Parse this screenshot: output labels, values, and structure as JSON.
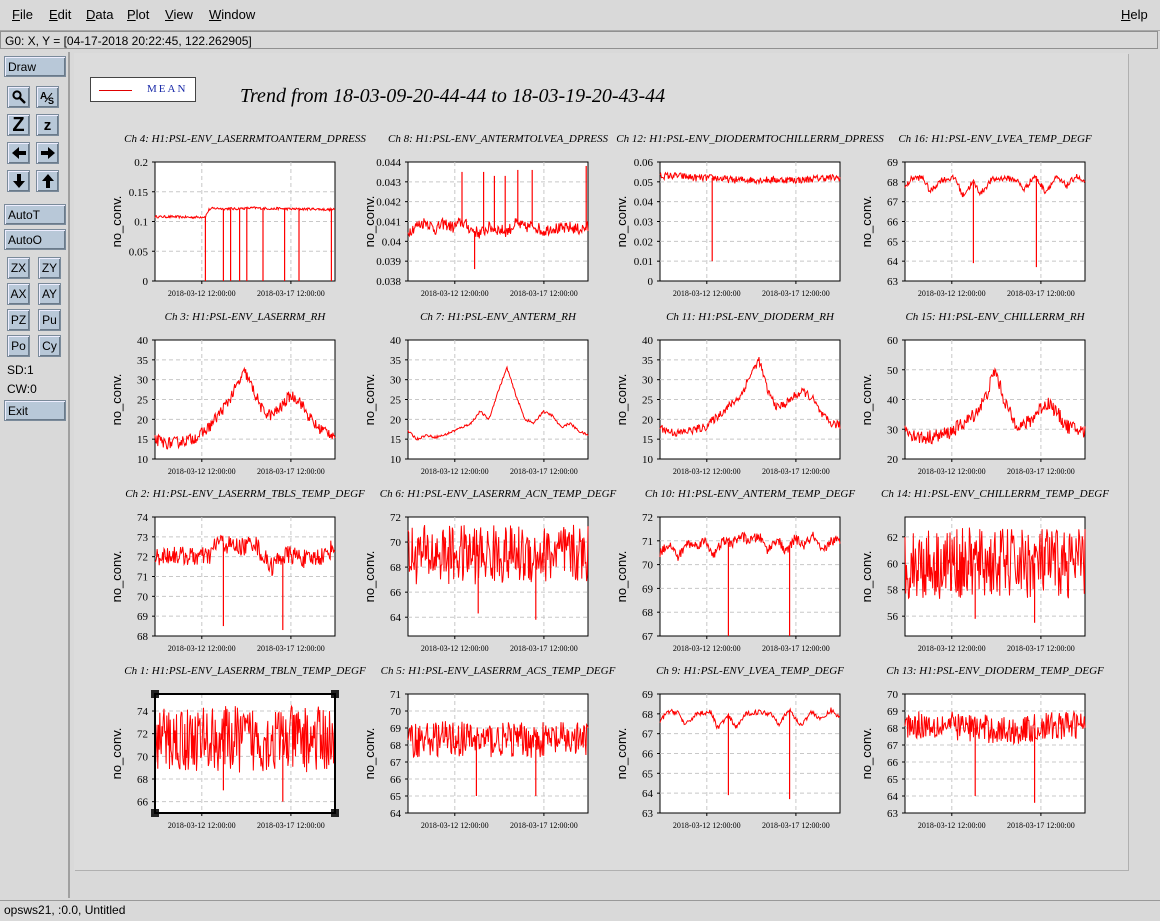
{
  "menubar": {
    "file": "File",
    "edit": "Edit",
    "data": "Data",
    "plot": "Plot",
    "view": "View",
    "window": "Window",
    "help": "Help"
  },
  "coord_readout": "G0: X, Y = [04-17-2018 20:22:45, 122.262905]",
  "toolbar": {
    "draw": "Draw",
    "zoom_big": "Z",
    "zoom_small": "z",
    "auto_t": "AutoT",
    "auto_o": "AutoO",
    "zx": "ZX",
    "zy": "ZY",
    "ax": "AX",
    "ay": "AY",
    "pz": "PZ",
    "pu": "Pu",
    "po": "Po",
    "cy": "Cy",
    "sd": "SD:1",
    "cw": "CW:0",
    "exit": "Exit"
  },
  "legend": {
    "label": "MEAN"
  },
  "main_title": "Trend from 18-03-09-20-44-44 to 18-03-19-20-43-44",
  "status": "opsws21, :0.0, Untitled",
  "colors": {
    "trace": "#ff0000",
    "legend_text": "#1a2aa8"
  },
  "chart_data": [
    {
      "type": "line",
      "title": "Ch 4: H1:PSL-ENV_LASERRMTOANTERM_DPRESS",
      "ylabel": "no_conv.",
      "xticks": [
        "2018-03-12 12:00:00",
        "2018-03-17 12:00:00"
      ],
      "yticks": [
        "0",
        "0.05",
        "0.1",
        "0.15",
        "0.2"
      ],
      "ylim": [
        0,
        0.2
      ],
      "series": [
        {
          "x": [
            0,
            0.1,
            0.2,
            0.28,
            0.3,
            0.32,
            0.36,
            0.38,
            0.42,
            0.44,
            0.48,
            0.5,
            0.55,
            0.6,
            0.62,
            0.66,
            0.68,
            0.75,
            0.8,
            0.85,
            0.9,
            0.95,
            1
          ],
          "y": [
            0.108,
            0.108,
            0.107,
            0.108,
            0.12,
            0.122,
            0.122,
            0.121,
            0.122,
            0.121,
            0.122,
            0.122,
            0.123,
            0.122,
            0.122,
            0.121,
            0.122,
            0.121,
            0.121,
            0.121,
            0.121,
            0.12,
            0.12
          ]
        }
      ],
      "spikes": [
        {
          "x": 0.28,
          "y": 0
        },
        {
          "x": 0.38,
          "y": 0
        },
        {
          "x": 0.42,
          "y": 0
        },
        {
          "x": 0.47,
          "y": 0
        },
        {
          "x": 0.51,
          "y": 0
        },
        {
          "x": 0.6,
          "y": 0
        },
        {
          "x": 0.72,
          "y": 0
        },
        {
          "x": 0.8,
          "y": 0
        },
        {
          "x": 0.98,
          "y": 0
        }
      ]
    },
    {
      "type": "line",
      "title": "Ch 8: H1:PSL-ENV_ANTERMTOLVEA_DPRESS",
      "ylabel": "no_conv.",
      "xticks": [
        "2018-03-12 12:00:00",
        "2018-03-17 12:00:00"
      ],
      "yticks": [
        "0.038",
        "0.039",
        "0.04",
        "0.041",
        "0.042",
        "0.043",
        "0.044"
      ],
      "ylim": [
        0.038,
        0.044
      ],
      "series": [
        {
          "x": [
            0,
            0.05,
            0.1,
            0.15,
            0.2,
            0.25,
            0.3,
            0.35,
            0.4,
            0.45,
            0.5,
            0.55,
            0.6,
            0.65,
            0.7,
            0.75,
            0.8,
            0.85,
            0.9,
            0.95,
            1
          ],
          "y": [
            0.0405,
            0.0408,
            0.041,
            0.0406,
            0.0409,
            0.0407,
            0.041,
            0.0406,
            0.0404,
            0.0407,
            0.0406,
            0.0405,
            0.0409,
            0.0407,
            0.0408,
            0.0405,
            0.0407,
            0.0406,
            0.0407,
            0.0406,
            0.0407
          ]
        }
      ],
      "spikes": [
        {
          "x": 0.3,
          "y": 0.0435
        },
        {
          "x": 0.37,
          "y": 0.0386
        },
        {
          "x": 0.42,
          "y": 0.0435
        },
        {
          "x": 0.48,
          "y": 0.0433
        },
        {
          "x": 0.54,
          "y": 0.0433
        },
        {
          "x": 0.61,
          "y": 0.0436
        },
        {
          "x": 0.69,
          "y": 0.0436
        },
        {
          "x": 0.99,
          "y": 0.0438
        }
      ]
    },
    {
      "type": "line",
      "title": "Ch 12: H1:PSL-ENV_DIODERMTOCHILLERRM_DPRESS",
      "ylabel": "no_conv.",
      "xticks": [
        "2018-03-12 12:00:00",
        "2018-03-17 12:00:00"
      ],
      "yticks": [
        "0",
        "0.01",
        "0.02",
        "0.03",
        "0.04",
        "0.05",
        "0.06"
      ],
      "ylim": [
        0,
        0.06
      ],
      "series": [
        {
          "x": [
            0,
            0.1,
            0.2,
            0.3,
            0.4,
            0.5,
            0.6,
            0.7,
            0.8,
            0.9,
            1
          ],
          "y": [
            0.053,
            0.053,
            0.052,
            0.052,
            0.051,
            0.051,
            0.051,
            0.051,
            0.051,
            0.052,
            0.052
          ]
        }
      ],
      "spikes": [
        {
          "x": 0.29,
          "y": 0.01
        }
      ]
    },
    {
      "type": "line",
      "title": "Ch 16: H1:PSL-ENV_LVEA_TEMP_DEGF",
      "ylabel": "no_conv.",
      "xticks": [
        "2018-03-12 12:00:00",
        "2018-03-17 12:00:00"
      ],
      "yticks": [
        "63",
        "64",
        "65",
        "66",
        "67",
        "68",
        "69"
      ],
      "ylim": [
        63,
        69
      ],
      "series": [
        {
          "x": [
            0,
            0.04,
            0.1,
            0.14,
            0.2,
            0.28,
            0.32,
            0.38,
            0.42,
            0.48,
            0.55,
            0.62,
            0.66,
            0.72,
            0.78,
            0.84,
            0.9,
            0.95,
            1
          ],
          "y": [
            67.7,
            68.2,
            68.2,
            67.5,
            68.1,
            68.2,
            67.3,
            68,
            67.4,
            68.1,
            68.2,
            68.1,
            67.6,
            68.3,
            67.5,
            68.2,
            67.8,
            68.3,
            67.9
          ]
        }
      ],
      "spikes": [
        {
          "x": 0.38,
          "y": 63.9
        },
        {
          "x": 0.73,
          "y": 63.7
        }
      ]
    },
    {
      "type": "line",
      "title": "Ch 3: H1:PSL-ENV_LASERRM_RH",
      "ylabel": "no_conv.",
      "xticks": [
        "2018-03-12 12:00:00",
        "2018-03-17 12:00:00"
      ],
      "yticks": [
        "10",
        "15",
        "20",
        "25",
        "30",
        "35",
        "40"
      ],
      "ylim": [
        10,
        40
      ],
      "series": [
        {
          "x": [
            0,
            0.05,
            0.1,
            0.15,
            0.2,
            0.25,
            0.3,
            0.35,
            0.4,
            0.45,
            0.5,
            0.55,
            0.6,
            0.65,
            0.7,
            0.75,
            0.8,
            0.85,
            0.9,
            0.95,
            1
          ],
          "y": [
            15,
            14,
            14,
            14.5,
            15,
            16,
            18,
            21,
            24,
            28,
            32,
            27,
            22,
            21,
            23,
            26,
            25,
            21,
            18,
            17,
            16
          ]
        }
      ]
    },
    {
      "type": "line",
      "title": "Ch 7: H1:PSL-ENV_ANTERM_RH",
      "ylabel": "no_conv.",
      "xticks": [
        "2018-03-12 12:00:00",
        "2018-03-17 12:00:00"
      ],
      "yticks": [
        "10",
        "15",
        "20",
        "25",
        "30",
        "35",
        "40"
      ],
      "ylim": [
        10,
        40
      ],
      "series": [
        {
          "x": [
            0,
            0.05,
            0.1,
            0.15,
            0.2,
            0.25,
            0.3,
            0.35,
            0.4,
            0.45,
            0.5,
            0.55,
            0.6,
            0.65,
            0.7,
            0.75,
            0.8,
            0.85,
            0.9,
            0.95,
            1
          ],
          "y": [
            17,
            15,
            16,
            15.5,
            16,
            17,
            18,
            19,
            22,
            20,
            27,
            33,
            26,
            20,
            19,
            22,
            21,
            18,
            19,
            17,
            16
          ]
        }
      ]
    },
    {
      "type": "line",
      "title": "Ch 11: H1:PSL-ENV_DIODERM_RH",
      "ylabel": "no_conv.",
      "xticks": [
        "2018-03-12 12:00:00",
        "2018-03-17 12:00:00"
      ],
      "yticks": [
        "10",
        "15",
        "20",
        "25",
        "30",
        "35",
        "40"
      ],
      "ylim": [
        10,
        40
      ],
      "series": [
        {
          "x": [
            0,
            0.05,
            0.1,
            0.15,
            0.2,
            0.25,
            0.3,
            0.35,
            0.4,
            0.45,
            0.5,
            0.55,
            0.6,
            0.65,
            0.7,
            0.75,
            0.8,
            0.85,
            0.9,
            0.95,
            1
          ],
          "y": [
            18,
            17,
            16.5,
            17,
            17.5,
            18,
            20,
            22,
            24,
            26,
            31,
            35,
            27,
            23,
            24,
            26,
            27,
            25,
            21,
            19,
            18.5
          ]
        }
      ]
    },
    {
      "type": "line",
      "title": "Ch 15: H1:PSL-ENV_CHILLERRM_RH",
      "ylabel": "no_conv.",
      "xticks": [
        "2018-03-12 12:00:00",
        "2018-03-17 12:00:00"
      ],
      "yticks": [
        "20",
        "30",
        "40",
        "50",
        "60"
      ],
      "ylim": [
        20,
        60
      ],
      "series": [
        {
          "x": [
            0,
            0.05,
            0.1,
            0.15,
            0.2,
            0.25,
            0.3,
            0.35,
            0.4,
            0.45,
            0.5,
            0.55,
            0.6,
            0.65,
            0.7,
            0.75,
            0.8,
            0.85,
            0.9,
            0.95,
            1
          ],
          "y": [
            30,
            28,
            27,
            27.5,
            28,
            29,
            31,
            33,
            36,
            41,
            50,
            40,
            33,
            31,
            33,
            37,
            39,
            35,
            31,
            30,
            29
          ]
        }
      ]
    },
    {
      "type": "line",
      "title": "Ch 2: H1:PSL-ENV_LASERRM_TBLS_TEMP_DEGF",
      "ylabel": "no_conv.",
      "xticks": [
        "2018-03-12 12:00:00",
        "2018-03-17 12:00:00"
      ],
      "yticks": [
        "68",
        "69",
        "70",
        "71",
        "72",
        "73",
        "74"
      ],
      "ylim": [
        68,
        74
      ],
      "series": [
        {
          "x": [
            0,
            0.1,
            0.2,
            0.3,
            0.35,
            0.4,
            0.45,
            0.5,
            0.55,
            0.6,
            0.65,
            0.7,
            0.75,
            0.8,
            0.85,
            0.9,
            0.95,
            1
          ],
          "y": [
            72,
            72.1,
            72,
            72,
            72.8,
            72.6,
            72.5,
            72.5,
            72.8,
            72,
            71.5,
            72,
            72.1,
            72,
            71.8,
            72,
            72.1,
            72.6
          ]
        }
      ],
      "spikes": [
        {
          "x": 0.38,
          "y": 68.5
        },
        {
          "x": 0.71,
          "y": 68.3
        }
      ]
    },
    {
      "type": "line",
      "title": "Ch 6: H1:PSL-ENV_LASERRM_ACN_TEMP_DEGF",
      "ylabel": "no_conv.",
      "xticks": [
        "2018-03-12 12:00:00",
        "2018-03-17 12:00:00"
      ],
      "yticks": [
        "64",
        "66",
        "68",
        "70",
        "72"
      ],
      "ylim": [
        62.5,
        72
      ],
      "series": [
        {
          "x": [
            0,
            0.2,
            0.4,
            0.6,
            0.8,
            1
          ],
          "y": [
            69,
            69,
            69,
            69,
            69,
            69
          ]
        }
      ],
      "spikes": [
        {
          "x": 0.39,
          "y": 64.3
        },
        {
          "x": 0.71,
          "y": 63.8
        }
      ]
    },
    {
      "type": "line",
      "title": "Ch 10: H1:PSL-ENV_ANTERM_TEMP_DEGF",
      "ylabel": "no_conv.",
      "xticks": [
        "2018-03-12 12:00:00",
        "2018-03-17 12:00:00"
      ],
      "yticks": [
        "67",
        "68",
        "69",
        "70",
        "71",
        "72"
      ],
      "ylim": [
        67,
        72
      ],
      "series": [
        {
          "x": [
            0,
            0.05,
            0.1,
            0.15,
            0.2,
            0.25,
            0.3,
            0.35,
            0.4,
            0.45,
            0.5,
            0.55,
            0.6,
            0.65,
            0.7,
            0.75,
            0.8,
            0.85,
            0.9,
            0.95,
            1
          ],
          "y": [
            70.5,
            70.9,
            70.3,
            70.9,
            70.8,
            71,
            70.4,
            71,
            70.9,
            71.2,
            71,
            71.2,
            70.6,
            71.1,
            70.5,
            71.1,
            70.8,
            71.2,
            70.5,
            71,
            71
          ]
        }
      ],
      "spikes": [
        {
          "x": 0.38,
          "y": 67
        },
        {
          "x": 0.72,
          "y": 67
        }
      ]
    },
    {
      "type": "line",
      "title": "Ch 14: H1:PSL-ENV_CHILLERRM_TEMP_DEGF",
      "ylabel": "no_conv.",
      "xticks": [
        "2018-03-12 12:00:00",
        "2018-03-17 12:00:00"
      ],
      "yticks": [
        "56",
        "58",
        "60",
        "62"
      ],
      "ylim": [
        54.5,
        63.5
      ],
      "series": [
        {
          "x": [
            0,
            0.2,
            0.4,
            0.6,
            0.8,
            1
          ],
          "y": [
            60,
            60,
            60,
            60,
            60,
            60
          ]
        }
      ],
      "spikes": [
        {
          "x": 0.39,
          "y": 55.8
        },
        {
          "x": 0.72,
          "y": 55.5
        }
      ]
    },
    {
      "type": "line",
      "title": "Ch 1: H1:PSL-ENV_LASERRM_TBLN_TEMP_DEGF",
      "ylabel": "no_conv.",
      "xticks": [
        "2018-03-12 12:00:00",
        "2018-03-17 12:00:00"
      ],
      "yticks": [
        "66",
        "68",
        "70",
        "72",
        "74"
      ],
      "ylim": [
        65,
        75.5
      ],
      "series": [
        {
          "x": [
            0,
            0.2,
            0.4,
            0.6,
            0.8,
            1
          ],
          "y": [
            71.5,
            71.5,
            71.5,
            71.5,
            71.5,
            71.5
          ]
        }
      ],
      "spikes": [
        {
          "x": 0.38,
          "y": 67
        },
        {
          "x": 0.71,
          "y": 66
        }
      ]
    },
    {
      "type": "line",
      "title": "Ch 5: H1:PSL-ENV_LASERRM_ACS_TEMP_DEGF",
      "ylabel": "no_conv.",
      "xticks": [
        "2018-03-12 12:00:00",
        "2018-03-17 12:00:00"
      ],
      "yticks": [
        "64",
        "65",
        "66",
        "67",
        "68",
        "69",
        "70",
        "71"
      ],
      "ylim": [
        64,
        71
      ],
      "series": [
        {
          "x": [
            0,
            0.2,
            0.4,
            0.6,
            0.8,
            1
          ],
          "y": [
            68.3,
            68.4,
            68.3,
            68.3,
            68.3,
            68.3
          ]
        }
      ],
      "spikes": [
        {
          "x": 0.38,
          "y": 65
        },
        {
          "x": 0.71,
          "y": 65
        }
      ]
    },
    {
      "type": "line",
      "title": "Ch 9: H1:PSL-ENV_LVEA_TEMP_DEGF",
      "ylabel": "no_conv.",
      "xticks": [
        "2018-03-12 12:00:00",
        "2018-03-17 12:00:00"
      ],
      "yticks": [
        "63",
        "64",
        "65",
        "66",
        "67",
        "68",
        "69"
      ],
      "ylim": [
        63,
        69
      ],
      "series": [
        {
          "x": [
            0,
            0.04,
            0.1,
            0.14,
            0.2,
            0.28,
            0.32,
            0.38,
            0.42,
            0.48,
            0.55,
            0.62,
            0.66,
            0.72,
            0.78,
            0.84,
            0.9,
            0.95,
            1
          ],
          "y": [
            67.6,
            68.1,
            68.1,
            67.4,
            68,
            68.1,
            67.3,
            67.9,
            67.3,
            68,
            68.1,
            68,
            67.5,
            68.2,
            67.4,
            68.1,
            67.7,
            68.2,
            67.8
          ]
        }
      ],
      "spikes": [
        {
          "x": 0.38,
          "y": 63.9
        },
        {
          "x": 0.72,
          "y": 63.7
        }
      ]
    },
    {
      "type": "line",
      "title": "Ch 13: H1:PSL-ENV_DIODERM_TEMP_DEGF",
      "ylabel": "no_conv.",
      "xticks": [
        "2018-03-12 12:00:00",
        "2018-03-17 12:00:00"
      ],
      "yticks": [
        "63",
        "64",
        "65",
        "66",
        "67",
        "68",
        "69",
        "70"
      ],
      "ylim": [
        63,
        70
      ],
      "series": [
        {
          "x": [
            0,
            0.2,
            0.4,
            0.6,
            0.8,
            1
          ],
          "y": [
            68.2,
            68.2,
            68,
            67.8,
            68.1,
            68.2
          ]
        }
      ],
      "spikes": [
        {
          "x": 0.39,
          "y": 64
        },
        {
          "x": 0.72,
          "y": 63.6
        }
      ]
    }
  ]
}
